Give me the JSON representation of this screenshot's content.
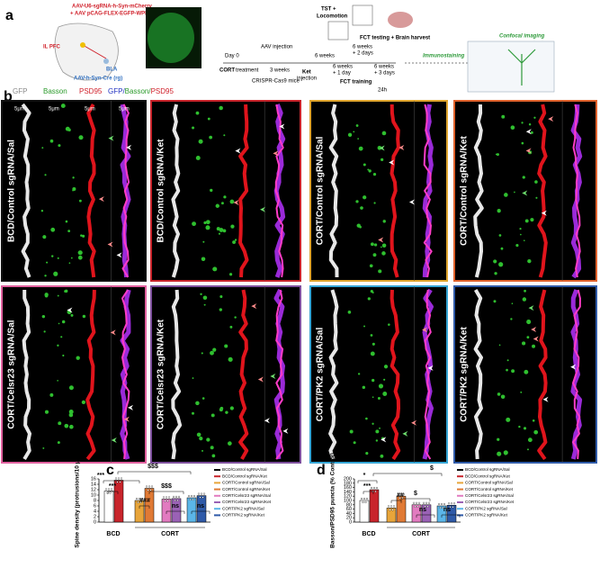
{
  "figure": {
    "panel_a": {
      "label": "a",
      "vector_1": "AAV-U6-sgRNA-h-Syn-mCherry",
      "vector_2": "+ AAV pCAG-FLEX-EGFP-WPRE",
      "region_pfc": "IL PFC",
      "region_bla": "BLA",
      "vector_3": "AAV-h-Syn-Cre (rg)",
      "day0": "Day 0",
      "cort": "CORT",
      "treatment": "treatment",
      "aav_injection": "AAV injection",
      "three_weeks": "3 weeks",
      "mice": "CRISPR-Cas9 mice",
      "tst": "TST +",
      "locomotion": "Locomotion",
      "fct_testing": "FCT testing + Brain harvest",
      "six_weeks": "6 weeks",
      "six_weeks_2": "6 weeks",
      "plus_2_days": "+ 2 days",
      "ket": "Ket",
      "injection": "injection",
      "six_weeks_3": "6 weeks",
      "plus_1_day": "+ 1 day",
      "six_weeks_4": "6 weeks",
      "plus_3_days": "+ 3 days",
      "fct_training": "FCT training",
      "h24": "24h",
      "immunostaining": "Immunostaining",
      "confocal": "Confocal imaging"
    },
    "panel_b": {
      "label": "b",
      "gfp": "GFP",
      "basson": "Basson",
      "psd95": "PSD95",
      "merged_gfp": "GFP/",
      "merged_basson": "Basson/",
      "merged_psd95": "PSD95",
      "scale_bar": "5μm",
      "panels": [
        "BCD/Control sgRNA/Sal",
        "BCD/Control sgRNA/Ket",
        "CORT/Control sgRNA/Sal",
        "CORT/Control sgRNA/Ket",
        "CORT/Celsr23 sgRNA/Sal",
        "CORT/Celsr23 sgRNA/Ket",
        "CORT/PK2 sgRNA/Sal",
        "CORT/PK2 sgRNA/Ket"
      ],
      "border_colors": [
        "#111111",
        "#c8242b",
        "#e0a52e",
        "#e0622c",
        "#e0609e",
        "#7d4f9c",
        "#35a5d5",
        "#2f5aa8"
      ]
    }
  },
  "chart_data": [
    {
      "type": "bar",
      "panel_label": "c",
      "y_label": "Spine density (protrusions/10 μm)",
      "categories": [
        "BCD/Control sgRNA/Sal",
        "BCD/Control sgRNA/Ket",
        "CORT/Control sgRNA/Sal",
        "CORT/Control sgRNA/Ket",
        "CORT/Celsr23 sgRNA/Sal",
        "CORT/Celsr23 sgRNA/Ket",
        "CORT/PK2 sgRNA/Sal",
        "CORT/PK2 sgRNA/Ket"
      ],
      "values": [
        11.5,
        15.5,
        8,
        12.5,
        8.5,
        8.7,
        9,
        9.8
      ],
      "colors": [
        "#ffffff",
        "#c8242b",
        "#e8a53a",
        "#e07a35",
        "#e27bc0",
        "#9a62b5",
        "#5bb6e8",
        "#2f5aa8"
      ],
      "groups": [
        "BCD",
        "CORT"
      ],
      "annotations": [
        "***",
        "***",
        "###",
        "$$$",
        "$$$",
        "ns",
        "ns"
      ],
      "ylim": [
        0,
        16
      ],
      "yticks": [
        0,
        2,
        4,
        6,
        8,
        10,
        12,
        14,
        16
      ]
    },
    {
      "type": "bar",
      "panel_label": "d",
      "y_label": "Basson/PSD95 puncta (% Control)",
      "categories": [
        "BCD/Control sgRNA/Sal",
        "BCD/Control sgRNA/Ket",
        "CORT/Control sgRNA/Sal",
        "CORT/Control sgRNA/Ket",
        "CORT/Celsr23 sgRNA/Sal",
        "CORT/Celsr23 sgRNA/Ket",
        "CORT/PK2 sgRNA/Sal",
        "CORT/PK2 sgRNA/Ket"
      ],
      "values": [
        100,
        150,
        65,
        120,
        80,
        80,
        75,
        78
      ],
      "colors": [
        "#ffffff",
        "#c8242b",
        "#e8a53a",
        "#e07a35",
        "#e27bc0",
        "#9a62b5",
        "#5bb6e8",
        "#2f5aa8"
      ],
      "groups": [
        "BCD",
        "CORT"
      ],
      "annotations": [
        "*",
        "***",
        "##",
        "$",
        "$",
        "ns",
        "ns"
      ],
      "ylim": [
        0,
        200
      ],
      "yticks": [
        0,
        20,
        40,
        60,
        80,
        100,
        120,
        140,
        160,
        180,
        200
      ]
    }
  ]
}
